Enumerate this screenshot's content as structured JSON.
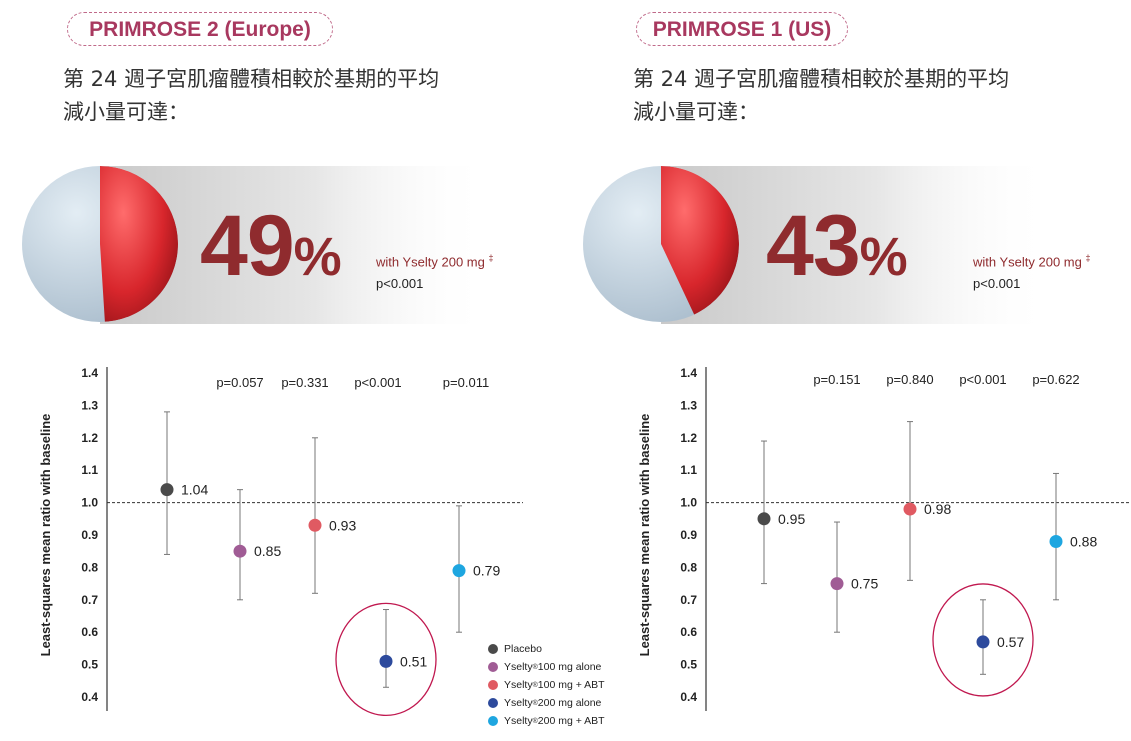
{
  "panels": [
    {
      "study": "PRIMROSE 2 (Europe)",
      "headline": [
        "第 24 週子宮肌瘤體積相較於基期的平均",
        "減小量可達："
      ],
      "percent": "49",
      "percent_sign": "%",
      "with_text": "with Yselty 200 mg",
      "with_mark": "‡",
      "p_value": "p<0.001"
    },
    {
      "study": "PRIMROSE 1 (US)",
      "headline": [
        "第 24 週子宮肌瘤體積相較於基期的平均",
        "減小量可達："
      ],
      "percent": "43",
      "percent_sign": "%",
      "with_text": "with Yselty 200 mg",
      "with_mark": "‡",
      "p_value": "p<0.001"
    }
  ],
  "legend": [
    {
      "label": "Placebo",
      "sup": "",
      "tail": "",
      "color": "#4a4a4a"
    },
    {
      "label": "Yselty",
      "sup": "®",
      "tail": " 100 mg alone",
      "color": "#a05c95"
    },
    {
      "label": "Yselty",
      "sup": "®",
      "tail": " 100 mg + ABT",
      "color": "#e05a62"
    },
    {
      "label": "Yselty",
      "sup": "®",
      "tail": " 200 mg alone",
      "color": "#2d4a9c"
    },
    {
      "label": "Yselty",
      "sup": "®",
      "tail": " 200 mg + ABT",
      "color": "#1ea6e0"
    }
  ],
  "chart_data": [
    {
      "type": "scatter",
      "ylabel": "Least-squares mean ratio with baseline",
      "ylim": [
        0.4,
        1.4
      ],
      "yticks": [
        "1.4",
        "1.3",
        "1.2",
        "1.1",
        "1.0",
        "0.9",
        "0.8",
        "0.7",
        "0.6",
        "0.5",
        "0.4"
      ],
      "reference_line": 1.0,
      "series": [
        {
          "name": "Placebo",
          "value": 1.04,
          "label": "1.04",
          "ci": [
            0.84,
            1.28
          ],
          "p": "",
          "color": "#4a4a4a",
          "highlight": false
        },
        {
          "name": "Yselty 100 mg alone",
          "value": 0.85,
          "label": "0.85",
          "ci": [
            0.7,
            1.04
          ],
          "p": "p=0.057",
          "color": "#a05c95",
          "highlight": false
        },
        {
          "name": "Yselty 100 mg + ABT",
          "value": 0.93,
          "label": "0.93",
          "ci": [
            0.72,
            1.2
          ],
          "p": "p=0.331",
          "color": "#e05a62",
          "highlight": false
        },
        {
          "name": "Yselty 200 mg alone",
          "value": 0.51,
          "label": "0.51",
          "ci": [
            0.43,
            0.67
          ],
          "p": "p<0.001",
          "color": "#2d4a9c",
          "highlight": true
        },
        {
          "name": "Yselty 200 mg + ABT",
          "value": 0.79,
          "label": "0.79",
          "ci": [
            0.6,
            0.99
          ],
          "p": "p=0.011",
          "color": "#1ea6e0",
          "highlight": false
        }
      ]
    },
    {
      "type": "scatter",
      "ylabel": "Least-squares mean ratio with baseline",
      "ylim": [
        0.4,
        1.4
      ],
      "yticks": [
        "1.4",
        "1.3",
        "1.2",
        "1.1",
        "1.0",
        "0.9",
        "0.8",
        "0.7",
        "0.6",
        "0.5",
        "0.4"
      ],
      "reference_line": 1.0,
      "series": [
        {
          "name": "Placebo",
          "value": 0.95,
          "label": "0.95",
          "ci": [
            0.75,
            1.19
          ],
          "p": "",
          "color": "#4a4a4a",
          "highlight": false
        },
        {
          "name": "Yselty 100 mg alone",
          "value": 0.75,
          "label": "0.75",
          "ci": [
            0.6,
            0.94
          ],
          "p": "p=0.151",
          "color": "#a05c95",
          "highlight": false
        },
        {
          "name": "Yselty 100 mg + ABT",
          "value": 0.98,
          "label": "0.98",
          "ci": [
            0.76,
            1.25
          ],
          "p": "p=0.840",
          "color": "#e05a62",
          "highlight": false
        },
        {
          "name": "Yselty 200 mg alone",
          "value": 0.57,
          "label": "0.57",
          "ci": [
            0.47,
            0.7
          ],
          "p": "p<0.001",
          "color": "#2d4a9c",
          "highlight": true
        },
        {
          "name": "Yselty 200 mg + ABT",
          "value": 0.88,
          "label": "0.88",
          "ci": [
            0.7,
            1.09
          ],
          "p": "p=0.622",
          "color": "#1ea6e0",
          "highlight": false
        }
      ]
    }
  ]
}
